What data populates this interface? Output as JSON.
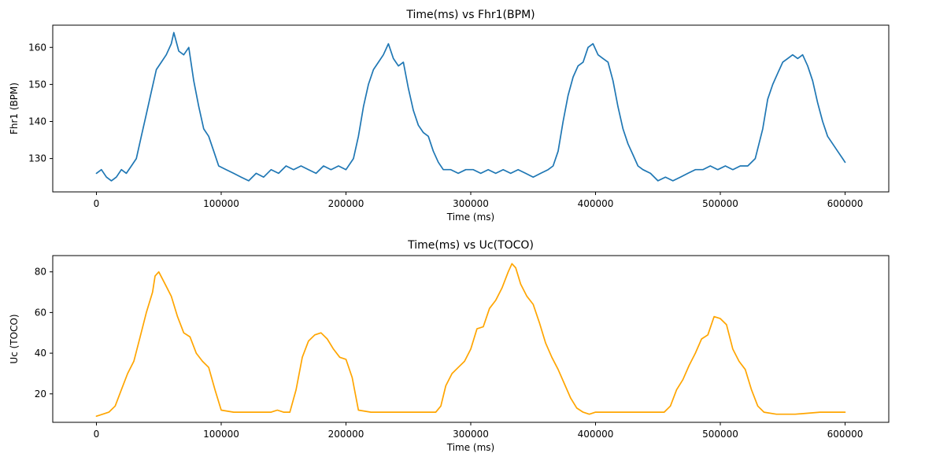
{
  "colors": {
    "fhr": "#1f77b4",
    "uc": "#ffa500"
  },
  "chart_data": [
    {
      "type": "line",
      "title": "Time(ms) vs Fhr1(BPM)",
      "xlabel": "Time (ms)",
      "ylabel": "Fhr1 (BPM)",
      "xlim": [
        -35000,
        635000
      ],
      "ylim": [
        121,
        166
      ],
      "xticks": [
        0,
        100000,
        200000,
        300000,
        400000,
        500000,
        600000
      ],
      "yticks": [
        130,
        140,
        150,
        160
      ],
      "grid": false,
      "series": [
        {
          "x": [
            0,
            4000,
            8000,
            12000,
            16000,
            20000,
            24000,
            28000,
            32000,
            36000,
            40000,
            44000,
            48000,
            52000,
            56000,
            60000,
            62000,
            66000,
            70000,
            74000,
            78000,
            82000,
            86000,
            90000,
            94000,
            98000,
            104000,
            110000,
            116000,
            122000,
            128000,
            134000,
            140000,
            146000,
            152000,
            158000,
            164000,
            170000,
            176000,
            182000,
            188000,
            194000,
            200000,
            206000,
            210000,
            214000,
            218000,
            222000,
            226000,
            230000,
            234000,
            238000,
            242000,
            246000,
            250000,
            254000,
            258000,
            262000,
            266000,
            270000,
            274000,
            278000,
            284000,
            290000,
            296000,
            302000,
            308000,
            314000,
            320000,
            326000,
            332000,
            338000,
            344000,
            350000,
            356000,
            362000,
            366000,
            370000,
            374000,
            378000,
            382000,
            386000,
            390000,
            394000,
            398000,
            402000,
            406000,
            410000,
            414000,
            418000,
            422000,
            426000,
            430000,
            434000,
            438000,
            444000,
            450000,
            456000,
            462000,
            468000,
            474000,
            480000,
            486000,
            492000,
            498000,
            504000,
            510000,
            516000,
            522000,
            528000,
            534000,
            538000,
            542000,
            546000,
            550000,
            554000,
            558000,
            562000,
            566000,
            570000,
            574000,
            578000,
            582000,
            586000,
            590000,
            594000,
            598000,
            600000
          ],
          "y": [
            126,
            127,
            125,
            124,
            125,
            127,
            126,
            128,
            130,
            136,
            142,
            148,
            154,
            156,
            158,
            161,
            164,
            159,
            158,
            160,
            151,
            144,
            138,
            136,
            132,
            128,
            127,
            126,
            125,
            124,
            126,
            125,
            127,
            126,
            128,
            127,
            128,
            127,
            126,
            128,
            127,
            128,
            127,
            130,
            136,
            144,
            150,
            154,
            156,
            158,
            161,
            157,
            155,
            156,
            149,
            143,
            139,
            137,
            136,
            132,
            129,
            127,
            127,
            126,
            127,
            127,
            126,
            127,
            126,
            127,
            126,
            127,
            126,
            125,
            126,
            127,
            128,
            132,
            140,
            147,
            152,
            155,
            156,
            160,
            161,
            158,
            157,
            156,
            151,
            144,
            138,
            134,
            131,
            128,
            127,
            126,
            124,
            125,
            124,
            125,
            126,
            127,
            127,
            128,
            127,
            128,
            127,
            128,
            128,
            130,
            138,
            146,
            150,
            153,
            156,
            157,
            158,
            157,
            158,
            155,
            151,
            145,
            140,
            136,
            134,
            132,
            130,
            129
          ]
        }
      ]
    },
    {
      "type": "line",
      "title": "Time(ms) vs Uc(TOCO)",
      "xlabel": "Time (ms)",
      "ylabel": "Uc (TOCO)",
      "xlim": [
        -35000,
        635000
      ],
      "ylim": [
        6,
        88
      ],
      "xticks": [
        0,
        100000,
        200000,
        300000,
        400000,
        500000,
        600000
      ],
      "yticks": [
        20,
        40,
        60,
        80
      ],
      "grid": false,
      "series": [
        {
          "x": [
            0,
            5000,
            10000,
            15000,
            20000,
            25000,
            30000,
            35000,
            40000,
            45000,
            47000,
            50000,
            55000,
            60000,
            65000,
            70000,
            75000,
            80000,
            85000,
            90000,
            95000,
            100000,
            110000,
            120000,
            130000,
            140000,
            145000,
            150000,
            155000,
            160000,
            165000,
            170000,
            175000,
            180000,
            185000,
            190000,
            195000,
            200000,
            205000,
            210000,
            220000,
            240000,
            260000,
            272000,
            276000,
            280000,
            285000,
            290000,
            295000,
            300000,
            305000,
            310000,
            315000,
            320000,
            325000,
            330000,
            333000,
            336000,
            340000,
            345000,
            350000,
            355000,
            360000,
            365000,
            370000,
            375000,
            380000,
            385000,
            390000,
            395000,
            400000,
            420000,
            440000,
            455000,
            460000,
            465000,
            470000,
            475000,
            480000,
            485000,
            490000,
            495000,
            500000,
            505000,
            510000,
            515000,
            520000,
            525000,
            530000,
            535000,
            545000,
            560000,
            580000,
            600000
          ],
          "y": [
            9,
            10,
            11,
            14,
            22,
            30,
            36,
            48,
            60,
            70,
            78,
            80,
            74,
            68,
            58,
            50,
            48,
            40,
            36,
            33,
            22,
            12,
            11,
            11,
            11,
            11,
            12,
            11,
            11,
            22,
            38,
            46,
            49,
            50,
            47,
            42,
            38,
            37,
            28,
            12,
            11,
            11,
            11,
            11,
            14,
            24,
            30,
            33,
            36,
            42,
            52,
            53,
            62,
            66,
            72,
            80,
            84,
            82,
            74,
            68,
            64,
            55,
            45,
            38,
            32,
            25,
            18,
            13,
            11,
            10,
            11,
            11,
            11,
            11,
            14,
            22,
            27,
            34,
            40,
            47,
            49,
            58,
            57,
            54,
            42,
            36,
            32,
            22,
            14,
            11,
            10,
            10,
            11,
            11
          ]
        }
      ]
    }
  ]
}
